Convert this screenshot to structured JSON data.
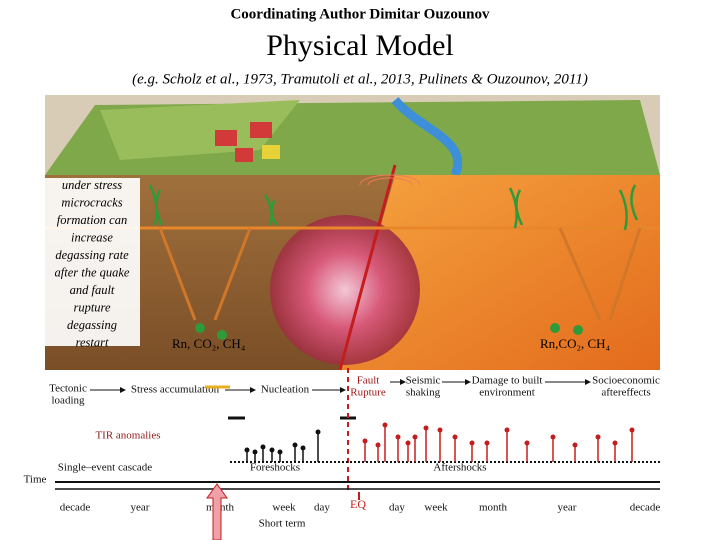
{
  "header": {
    "author": "Coordinating Author  Dimitar Ouzounov",
    "title": "Physical Model",
    "citation": "(e.g. Scholz et al., 1973, Tramutoli et al., 2013, Pulinets & Ouzounov, 2011)"
  },
  "note": [
    "under stress",
    "microcracks",
    "formation can",
    "increase",
    "degassing rate",
    "after the quake",
    "and  fault",
    "rupture",
    "degassing",
    "restart"
  ],
  "gases": [
    "Rn, CO₂, CH₄",
    "Rn,CO₂, CH₄"
  ],
  "stages": [
    [
      "Tectonic",
      "loading"
    ],
    [
      "Stress accumulation"
    ],
    [
      "Nucleation"
    ],
    [
      "Fault",
      "Rupture"
    ],
    [
      "Seismic",
      "shaking"
    ],
    [
      "Damage to built",
      "environment"
    ],
    [
      "Socioeconomic",
      "aftereffects"
    ]
  ],
  "tir": "TIR anomalies",
  "cascade": [
    "Single–event cascade",
    "Foreshocks",
    "Aftershocks"
  ],
  "time": {
    "label": "Time",
    "ticks": [
      "decade",
      "year",
      "month",
      "week",
      "day",
      "EQ",
      "day",
      "week",
      "month",
      "year",
      "decade"
    ],
    "short_term": "Short term"
  }
}
